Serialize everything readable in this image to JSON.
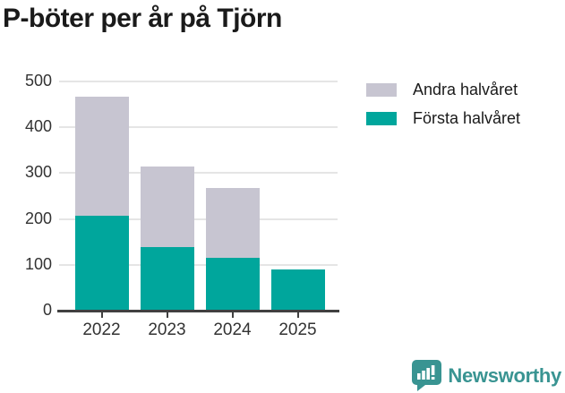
{
  "title": "P-böter per år på Tjörn",
  "colors": {
    "first_half": "#00a69c",
    "second_half": "#c7c5d1",
    "grid_line": "#e5e5e5",
    "axis_line": "#404040",
    "tick_text": "#333333",
    "title_text": "#1a1a1a",
    "logo_teal": "#399492"
  },
  "chart_data": {
    "type": "bar",
    "stacked": true,
    "title": "P-böter per år på Tjörn",
    "xlabel": "",
    "ylabel": "",
    "categories": [
      "2022",
      "2023",
      "2024",
      "2025"
    ],
    "series": [
      {
        "name": "Första halvåret",
        "color_key": "first_half",
        "values": [
          207,
          139,
          116,
          89
        ]
      },
      {
        "name": "Andra halvåret",
        "color_key": "second_half",
        "values": [
          260,
          175,
          152,
          0
        ]
      }
    ],
    "ylim": [
      0,
      500
    ],
    "yticks": [
      0,
      100,
      200,
      300,
      400,
      500
    ],
    "grid": true,
    "legend_position": "top-right"
  },
  "legend": {
    "items": [
      {
        "label": "Andra halvåret",
        "color_key": "second_half"
      },
      {
        "label": "Första halvåret",
        "color_key": "first_half"
      }
    ]
  },
  "footer": {
    "brand": "Newsworthy"
  }
}
